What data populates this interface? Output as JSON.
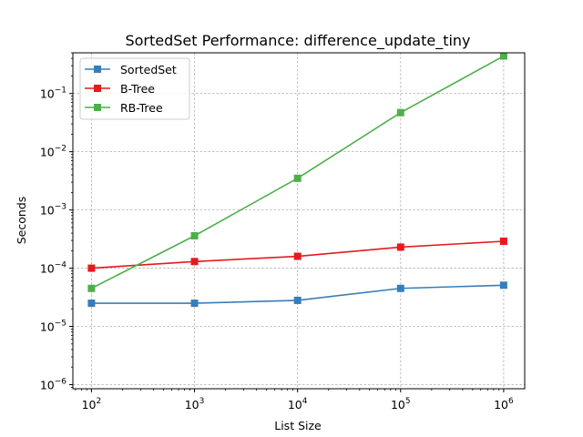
{
  "chart_data": {
    "type": "line",
    "title": "SortedSet Performance: difference_update_tiny",
    "xlabel": "List Size",
    "ylabel": "Seconds",
    "xscale": "log",
    "yscale": "log",
    "xlim": [
      66,
      1600000
    ],
    "ylim": [
      8.5e-07,
      0.5
    ],
    "grid": true,
    "legend_position": "top-left",
    "x": [
      100,
      1000,
      10000,
      100000,
      1000000
    ],
    "x_ticks": [
      {
        "value": 100,
        "base": "10",
        "exp": "2"
      },
      {
        "value": 1000,
        "base": "10",
        "exp": "3"
      },
      {
        "value": 10000,
        "base": "10",
        "exp": "4"
      },
      {
        "value": 100000,
        "base": "10",
        "exp": "5"
      },
      {
        "value": 1000000,
        "base": "10",
        "exp": "6"
      }
    ],
    "y_ticks": [
      {
        "value": 1e-06,
        "base": "10",
        "exp": "−6"
      },
      {
        "value": 1e-05,
        "base": "10",
        "exp": "−5"
      },
      {
        "value": 0.0001,
        "base": "10",
        "exp": "−4"
      },
      {
        "value": 0.001,
        "base": "10",
        "exp": "−3"
      },
      {
        "value": 0.01,
        "base": "10",
        "exp": "−2"
      },
      {
        "value": 0.1,
        "base": "10",
        "exp": "−1"
      }
    ],
    "series": [
      {
        "name": "SortedSet",
        "color": "#377eb8",
        "values": [
          2.5e-05,
          2.5e-05,
          2.8e-05,
          4.5e-05,
          5.1e-05
        ]
      },
      {
        "name": "B-Tree",
        "color": "#e41a1c",
        "values": [
          0.0001,
          0.00013,
          0.00016,
          0.00023,
          0.00029
        ]
      },
      {
        "name": "RB-Tree",
        "color": "#4daf4a",
        "values": [
          4.5e-05,
          0.00036,
          0.0035,
          0.047,
          0.44
        ]
      }
    ]
  }
}
